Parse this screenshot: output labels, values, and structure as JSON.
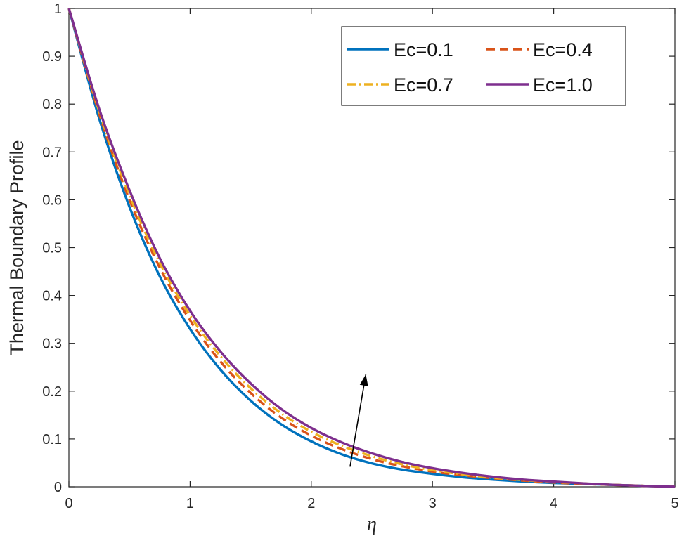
{
  "chart_data": {
    "type": "line",
    "xlabel": "η",
    "ylabel": "Thermal Boundary Profile",
    "xlim": [
      0,
      5
    ],
    "ylim": [
      0,
      1
    ],
    "x_ticks": [
      "0",
      "1",
      "2",
      "3",
      "4",
      "5"
    ],
    "y_ticks": [
      "0",
      "0.1",
      "0.2",
      "0.3",
      "0.4",
      "0.5",
      "0.6",
      "0.7",
      "0.8",
      "0.9",
      "1"
    ],
    "grid": false,
    "legend_position": "top-right",
    "legend_columns": 2,
    "x": [
      0,
      0.25,
      0.5,
      0.75,
      1,
      1.25,
      1.5,
      1.75,
      2,
      2.25,
      2.5,
      2.75,
      3,
      3.25,
      3.5,
      3.75,
      4,
      4.25,
      4.5,
      4.75,
      5
    ],
    "series": [
      {
        "name": "Ec=0.1",
        "color": "#0072BD",
        "dash": "solid",
        "values": [
          1,
          0.77,
          0.585,
          0.44,
          0.33,
          0.245,
          0.18,
          0.131,
          0.095,
          0.068,
          0.049,
          0.036,
          0.027,
          0.02,
          0.015,
          0.011,
          0.008,
          0.006,
          0.004,
          0.002,
          0
        ]
      },
      {
        "name": "Ec=0.4",
        "color": "#D95319",
        "dash": "dashed",
        "values": [
          1,
          0.78,
          0.6,
          0.458,
          0.348,
          0.262,
          0.196,
          0.145,
          0.107,
          0.079,
          0.058,
          0.043,
          0.032,
          0.024,
          0.018,
          0.013,
          0.009,
          0.006,
          0.004,
          0.002,
          0
        ]
      },
      {
        "name": "Ec=0.7",
        "color": "#EDB120",
        "dash": "dashdot",
        "values": [
          1,
          0.785,
          0.61,
          0.468,
          0.358,
          0.273,
          0.206,
          0.154,
          0.115,
          0.086,
          0.064,
          0.047,
          0.035,
          0.026,
          0.019,
          0.014,
          0.01,
          0.007,
          0.004,
          0.002,
          0
        ]
      },
      {
        "name": "Ec=1.0",
        "color": "#7E2F8E",
        "dash": "solid",
        "values": [
          1,
          0.79,
          0.62,
          0.478,
          0.368,
          0.283,
          0.216,
          0.163,
          0.123,
          0.093,
          0.07,
          0.052,
          0.039,
          0.029,
          0.021,
          0.015,
          0.011,
          0.007,
          0.004,
          0.002,
          0
        ]
      }
    ],
    "annotation_arrow": {
      "from": [
        2.32,
        0.042
      ],
      "to": [
        2.45,
        0.235
      ],
      "color": "#000000"
    }
  }
}
